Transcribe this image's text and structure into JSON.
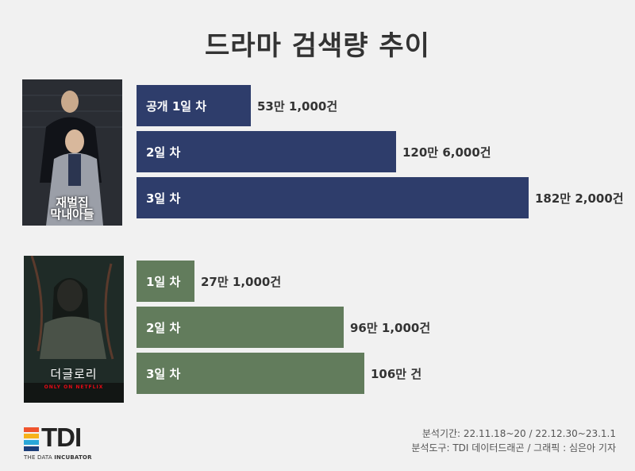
{
  "title": "드라마 검색량 추이",
  "posters": [
    {
      "title_line1": "재벌집",
      "title_line2": "막내아들"
    },
    {
      "title": "더글로리",
      "netflix": "ONLY ON NETFLIX"
    }
  ],
  "colors": {
    "group1": "#2e3d6b",
    "group2": "#627c5c"
  },
  "chart_data": [
    {
      "type": "bar",
      "orientation": "horizontal",
      "categories": [
        "공개 1일 차",
        "2일 차",
        "3일 차"
      ],
      "values": [
        531000,
        1206000,
        1822000
      ],
      "value_labels": [
        "53만 1,000건",
        "120만 6,000건",
        "182만 2,000건"
      ],
      "color": "#2e3d6b"
    },
    {
      "type": "bar",
      "orientation": "horizontal",
      "categories": [
        "1일 차",
        "2일 차",
        "3일 차"
      ],
      "values": [
        271000,
        961000,
        1060000
      ],
      "value_labels": [
        "27만 1,000건",
        "96만 1,000건",
        "106만 건"
      ],
      "color": "#627c5c"
    }
  ],
  "footer": {
    "line1": "분석기간: 22.11.18~20 / 22.12.30~23.1.1",
    "line2": "분석도구: TDI 데이터드래곤 / 그래픽 : 심은아 기자"
  },
  "logo": {
    "text": "TDI",
    "sub_a": "THE DATA ",
    "sub_b": "INCUBATOR"
  }
}
